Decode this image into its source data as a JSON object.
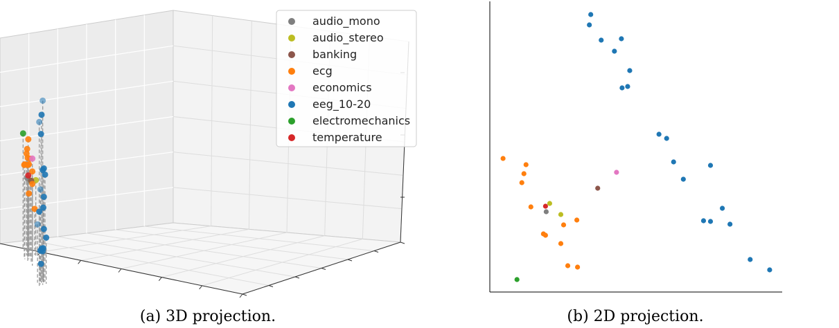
{
  "captions": {
    "left": "(a) 3D projection.",
    "right": "(b) 2D projection."
  },
  "chart_data": [
    {
      "type": "scatter",
      "title": "",
      "xlabel": "",
      "ylabel": "",
      "zlabel": "",
      "grid": true,
      "legend": "top-right",
      "series": [
        {
          "name": "audio_mono",
          "color": "#7f7f7f",
          "points": [
            {
              "x": -0.6,
              "y": -0.6,
              "z": 0.5
            }
          ]
        },
        {
          "name": "audio_stereo",
          "color": "#bcbd22",
          "points": [
            {
              "x": -0.5,
              "y": -0.7,
              "z": 0.48
            },
            {
              "x": -0.45,
              "y": -0.5,
              "z": 0.5
            }
          ]
        },
        {
          "name": "banking",
          "color": "#8c564b",
          "points": [
            {
              "x": -0.3,
              "y": -0.3,
              "z": 0.55
            }
          ]
        },
        {
          "name": "ecg",
          "color": "#ff7f0e",
          "points": [
            {
              "x": -0.75,
              "y": -0.8,
              "z": 0.62
            },
            {
              "x": -0.7,
              "y": -0.75,
              "z": 0.95
            },
            {
              "x": -0.7,
              "y": -0.7,
              "z": 0.78
            },
            {
              "x": -0.65,
              "y": -0.8,
              "z": 0.4
            },
            {
              "x": -0.6,
              "y": -0.8,
              "z": 0.1
            },
            {
              "x": -0.8,
              "y": -0.9,
              "z": 0.25
            },
            {
              "x": -0.55,
              "y": -0.6,
              "z": 0.75
            },
            {
              "x": -0.5,
              "y": -0.5,
              "z": 0.7
            },
            {
              "x": -0.45,
              "y": -0.4,
              "z": 0.8
            },
            {
              "x": -0.55,
              "y": -0.45,
              "z": 0.7
            },
            {
              "x": -0.6,
              "y": -0.5,
              "z": 0.68
            },
            {
              "x": -0.5,
              "y": -0.6,
              "z": 0.6
            },
            {
              "x": -0.65,
              "y": -0.65,
              "z": 0.85
            }
          ]
        },
        {
          "name": "economics",
          "color": "#e377c2",
          "points": [
            {
              "x": -0.2,
              "y": -0.2,
              "z": 0.85
            }
          ]
        },
        {
          "name": "eeg_10-20",
          "color": "#1f77b4",
          "points": [
            {
              "x": 0.6,
              "y": 0.6,
              "z": 1.6
            },
            {
              "x": 0.7,
              "y": 0.7,
              "z": 1.8
            },
            {
              "x": 0.55,
              "y": 0.55,
              "z": 1.35
            },
            {
              "x": 0.7,
              "y": 0.8,
              "z": 1.55
            },
            {
              "x": 0.5,
              "y": 0.4,
              "z": 0.9
            },
            {
              "x": 0.55,
              "y": 0.5,
              "z": 0.9
            },
            {
              "x": 0.6,
              "y": 0.5,
              "z": 0.85
            },
            {
              "x": 0.65,
              "y": 0.7,
              "z": 0.7
            },
            {
              "x": 0.6,
              "y": 0.55,
              "z": 0.45
            },
            {
              "x": 0.5,
              "y": 0.4,
              "z": 0.55
            },
            {
              "x": 0.55,
              "y": 0.6,
              "z": 0.4
            },
            {
              "x": 0.55,
              "y": 0.65,
              "z": 0.25
            },
            {
              "x": 0.65,
              "y": 0.6,
              "z": 0.2
            },
            {
              "x": 0.6,
              "y": 0.55,
              "z": -0.05
            },
            {
              "x": 0.55,
              "y": 0.5,
              "z": -0.1
            },
            {
              "x": 0.6,
              "y": 0.6,
              "z": -0.05
            },
            {
              "x": 0.5,
              "y": 0.5,
              "z": -0.1
            },
            {
              "x": 0.55,
              "y": 0.55,
              "z": -0.25
            },
            {
              "x": 0.7,
              "y": 0.6,
              "z": 0.1
            }
          ]
        },
        {
          "name": "electromechanics",
          "color": "#2ca02c",
          "points": [
            {
              "x": -1.0,
              "y": -1.0,
              "z": 0.95
            }
          ]
        },
        {
          "name": "temperature",
          "color": "#d62728",
          "points": [
            {
              "x": -0.55,
              "y": -0.55,
              "z": 0.55
            }
          ]
        }
      ]
    },
    {
      "type": "scatter",
      "title": "",
      "xlabel": "",
      "ylabel": "",
      "xlim": [
        0,
        420
      ],
      "ylim": [
        0,
        420
      ],
      "grid": false,
      "legend": "none",
      "series": [
        {
          "name": "audio_mono",
          "color": "#7f7f7f",
          "points": [
            [
              81,
              116
            ]
          ]
        },
        {
          "name": "audio_stereo",
          "color": "#bcbd22",
          "points": [
            [
              86,
              128
            ],
            [
              102,
              112
            ]
          ]
        },
        {
          "name": "banking",
          "color": "#8c564b",
          "points": [
            [
              155,
              150
            ]
          ]
        },
        {
          "name": "ecg",
          "color": "#ff7f0e",
          "points": [
            [
              19,
              193
            ],
            [
              52,
              184
            ],
            [
              49,
              171
            ],
            [
              46,
              158
            ],
            [
              59,
              123
            ],
            [
              106,
              97
            ],
            [
              77,
              84
            ],
            [
              80,
              82
            ],
            [
              102,
              70
            ],
            [
              112,
              38
            ],
            [
              126,
              36
            ],
            [
              125,
              104
            ]
          ]
        },
        {
          "name": "economics",
          "color": "#e377c2",
          "points": [
            [
              182,
              173
            ]
          ]
        },
        {
          "name": "eeg_10-20",
          "color": "#1f77b4",
          "points": [
            [
              145,
              401
            ],
            [
              143,
              386
            ],
            [
              160,
              364
            ],
            [
              189,
              366
            ],
            [
              179,
              348
            ],
            [
              201,
              320
            ],
            [
              198,
              297
            ],
            [
              190,
              295
            ],
            [
              243,
              228
            ],
            [
              254,
              222
            ],
            [
              264,
              188
            ],
            [
              317,
              183
            ],
            [
              278,
              163
            ],
            [
              334,
              121
            ],
            [
              307,
              103
            ],
            [
              317,
              102
            ],
            [
              345,
              98
            ],
            [
              374,
              47
            ],
            [
              402,
              32
            ]
          ]
        },
        {
          "name": "electromechanics",
          "color": "#2ca02c",
          "points": [
            [
              39,
              18
            ]
          ]
        },
        {
          "name": "temperature",
          "color": "#d62728",
          "points": [
            [
              80,
              124
            ]
          ]
        }
      ]
    }
  ]
}
